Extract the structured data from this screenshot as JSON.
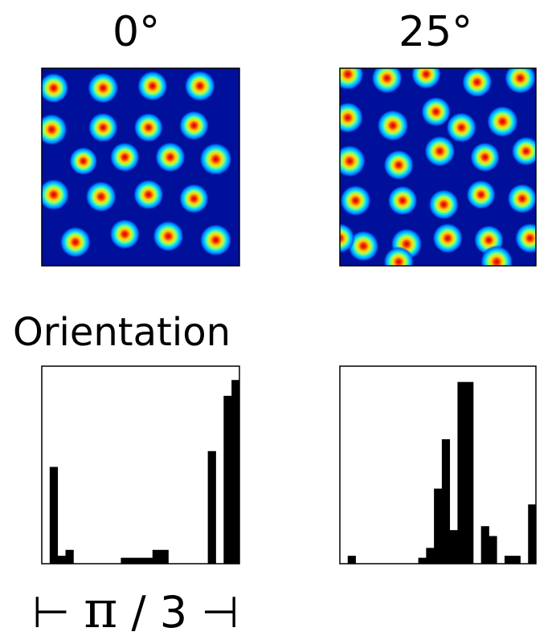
{
  "titles": {
    "left": "0°",
    "right": "25°"
  },
  "orientation_label": "Orientation",
  "axis_label": {
    "left_tick": "⊢",
    "symbol": "π",
    "rest": "/ 3",
    "right_tick": "⊣"
  },
  "colors": {
    "map_bg": "#00109a",
    "bar": "#000000",
    "frame": "#000000"
  },
  "chart_data": [
    {
      "type": "heatmap",
      "name": "rate-map-0deg",
      "colormap": "jet",
      "fields": [
        [
          0.06,
          0.9,
          0.75
        ],
        [
          0.31,
          0.9,
          0.8
        ],
        [
          0.56,
          0.91,
          0.75
        ],
        [
          0.8,
          0.91,
          0.8
        ],
        [
          0.05,
          0.69,
          0.85
        ],
        [
          0.31,
          0.7,
          0.7
        ],
        [
          0.54,
          0.7,
          0.65
        ],
        [
          0.77,
          0.71,
          0.7
        ],
        [
          0.21,
          0.53,
          0.55
        ],
        [
          0.42,
          0.55,
          0.7
        ],
        [
          0.65,
          0.55,
          0.75
        ],
        [
          0.88,
          0.54,
          0.95
        ],
        [
          0.06,
          0.36,
          0.85
        ],
        [
          0.3,
          0.35,
          0.8
        ],
        [
          0.54,
          0.36,
          0.75
        ],
        [
          0.77,
          0.34,
          0.7
        ],
        [
          0.17,
          0.12,
          0.8
        ],
        [
          0.42,
          0.16,
          0.75
        ],
        [
          0.64,
          0.15,
          0.8
        ],
        [
          0.88,
          0.13,
          0.9
        ]
      ]
    },
    {
      "type": "heatmap",
      "name": "rate-map-25deg",
      "colormap": "jet",
      "fields": [
        [
          0.04,
          0.97,
          0.9
        ],
        [
          0.24,
          0.95,
          0.8
        ],
        [
          0.44,
          0.97,
          0.7
        ],
        [
          0.7,
          0.93,
          0.75
        ],
        [
          0.92,
          0.95,
          0.85
        ],
        [
          0.04,
          0.75,
          0.8
        ],
        [
          0.27,
          0.71,
          0.85
        ],
        [
          0.49,
          0.78,
          0.7
        ],
        [
          0.62,
          0.7,
          0.75
        ],
        [
          0.83,
          0.73,
          0.85
        ],
        [
          0.05,
          0.53,
          0.9
        ],
        [
          0.3,
          0.51,
          0.75
        ],
        [
          0.51,
          0.58,
          0.8
        ],
        [
          0.74,
          0.55,
          0.7
        ],
        [
          0.95,
          0.58,
          0.65
        ],
        [
          0.08,
          0.33,
          0.8
        ],
        [
          0.32,
          0.33,
          0.7
        ],
        [
          0.53,
          0.31,
          0.75
        ],
        [
          0.72,
          0.36,
          0.65
        ],
        [
          0.93,
          0.34,
          0.7
        ],
        [
          0.12,
          0.1,
          0.8
        ],
        [
          0.34,
          0.11,
          0.85
        ],
        [
          0.55,
          0.14,
          0.75
        ],
        [
          0.76,
          0.13,
          0.7
        ],
        [
          0.97,
          0.14,
          0.75
        ],
        [
          0.8,
          0.02,
          0.95
        ],
        [
          0.3,
          0.02,
          0.75
        ],
        [
          0.0,
          0.14,
          0.7
        ]
      ]
    },
    {
      "type": "bar",
      "name": "orientation-histogram-0deg",
      "xlabel": "",
      "ylabel": "",
      "ylim": [
        0,
        1
      ],
      "values": [
        0,
        0.49,
        0.04,
        0.07,
        0,
        0,
        0,
        0,
        0,
        0,
        0.03,
        0.03,
        0.03,
        0.03,
        0.07,
        0.07,
        0,
        0,
        0,
        0,
        0,
        0.57,
        0,
        0.85,
        0.93
      ]
    },
    {
      "type": "bar",
      "name": "orientation-histogram-25deg",
      "xlabel": "",
      "ylabel": "",
      "ylim": [
        0,
        1
      ],
      "values": [
        0,
        0.04,
        0,
        0,
        0,
        0,
        0,
        0,
        0,
        0,
        0.03,
        0.08,
        0.38,
        0.63,
        0.17,
        0.92,
        0.92,
        0,
        0.19,
        0.14,
        0,
        0.04,
        0.04,
        0,
        0.3
      ]
    }
  ]
}
